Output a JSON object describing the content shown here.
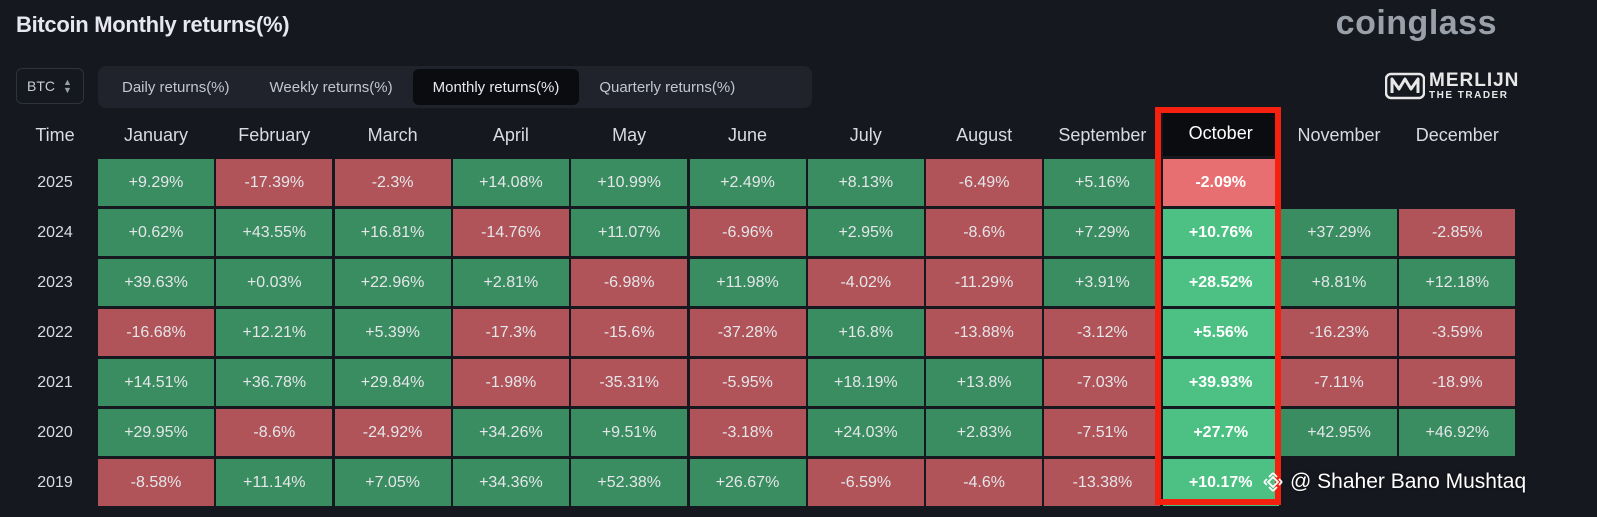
{
  "page": {
    "title": "Bitcoin Monthly returns(%)",
    "brand": "coinglass",
    "symbol_select": "BTC",
    "tabs": [
      "Daily returns(%)",
      "Weekly returns(%)",
      "Monthly returns(%)",
      "Quarterly returns(%)"
    ],
    "active_tab": "Monthly returns(%)",
    "logo": {
      "line1": "MERLIJN",
      "line2": "THE TRADER"
    },
    "watermark": "@ Shaher Bano Mushtaq"
  },
  "colors": {
    "positive": "#3a8d60",
    "negative": "#b05459",
    "positive_highlight": "#4cc183",
    "negative_highlight": "#e86f71",
    "highlight_border": "#f5200e"
  },
  "chart_data": {
    "type": "heatmap",
    "title": "Bitcoin Monthly returns(%)",
    "row_header": "Time",
    "columns": [
      "January",
      "February",
      "March",
      "April",
      "May",
      "June",
      "July",
      "August",
      "September",
      "October",
      "November",
      "December"
    ],
    "highlighted_column": "October",
    "rows": [
      {
        "year": "2025",
        "values": [
          "+9.29%",
          "-17.39%",
          "-2.3%",
          "+14.08%",
          "+10.99%",
          "+2.49%",
          "+8.13%",
          "-6.49%",
          "+5.16%",
          "-2.09%",
          "",
          ""
        ]
      },
      {
        "year": "2024",
        "values": [
          "+0.62%",
          "+43.55%",
          "+16.81%",
          "-14.76%",
          "+11.07%",
          "-6.96%",
          "+2.95%",
          "-8.6%",
          "+7.29%",
          "+10.76%",
          "+37.29%",
          "-2.85%"
        ]
      },
      {
        "year": "2023",
        "values": [
          "+39.63%",
          "+0.03%",
          "+22.96%",
          "+2.81%",
          "-6.98%",
          "+11.98%",
          "-4.02%",
          "-11.29%",
          "+3.91%",
          "+28.52%",
          "+8.81%",
          "+12.18%"
        ]
      },
      {
        "year": "2022",
        "values": [
          "-16.68%",
          "+12.21%",
          "+5.39%",
          "-17.3%",
          "-15.6%",
          "-37.28%",
          "+16.8%",
          "-13.88%",
          "-3.12%",
          "+5.56%",
          "-16.23%",
          "-3.59%"
        ]
      },
      {
        "year": "2021",
        "values": [
          "+14.51%",
          "+36.78%",
          "+29.84%",
          "-1.98%",
          "-35.31%",
          "-5.95%",
          "+18.19%",
          "+13.8%",
          "-7.03%",
          "+39.93%",
          "-7.11%",
          "-18.9%"
        ]
      },
      {
        "year": "2020",
        "values": [
          "+29.95%",
          "-8.6%",
          "-24.92%",
          "+34.26%",
          "+9.51%",
          "-3.18%",
          "+24.03%",
          "+2.83%",
          "-7.51%",
          "+27.7%",
          "+42.95%",
          "+46.92%"
        ]
      },
      {
        "year": "2019",
        "values": [
          "-8.58%",
          "+11.14%",
          "+7.05%",
          "+34.36%",
          "+52.38%",
          "+26.67%",
          "-6.59%",
          "-4.6%",
          "-13.38%",
          "+10.17%",
          "",
          ""
        ]
      }
    ]
  }
}
